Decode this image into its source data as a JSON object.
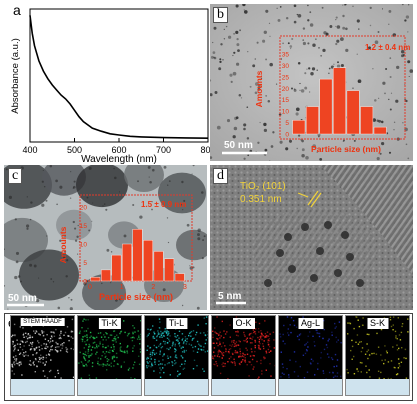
{
  "figure": {
    "panel_a": {
      "letter": "a",
      "chart_data": {
        "type": "line",
        "xlabel": "Wavelength (nm)",
        "ylabel": "Absorbance (a.u.)",
        "xlim": [
          400,
          800
        ],
        "xticks": [
          400,
          500,
          600,
          700,
          800
        ],
        "series": [
          {
            "x": [
              400,
              405,
              410,
              415,
              420,
              430,
              440,
              450,
              460,
              470,
              480,
              490,
              500,
              510,
              520,
              540,
              560,
              580,
              600,
              625,
              650,
              700,
              750,
              800
            ],
            "y": [
              1.0,
              0.86,
              0.76,
              0.7,
              0.64,
              0.56,
              0.5,
              0.45,
              0.41,
              0.37,
              0.34,
              0.3,
              0.25,
              0.2,
              0.16,
              0.11,
              0.085,
              0.065,
              0.055,
              0.045,
              0.04,
              0.035,
              0.032,
              0.03
            ]
          }
        ],
        "ylim": [
          0,
          1.05
        ]
      }
    },
    "panel_b": {
      "letter": "b",
      "scale_bar": "50 nm",
      "chart_data": {
        "type": "bar",
        "annotation": "1.2 ± 0.4 nm",
        "xlabel": "Particle size (nm)",
        "ylabel": "Amounts",
        "ylim": [
          0,
          35
        ],
        "yticks": [
          0,
          5,
          10,
          15,
          20,
          25,
          30,
          35
        ],
        "values": [
          6,
          12,
          24,
          29,
          19,
          12,
          3
        ]
      }
    },
    "panel_c": {
      "letter": "c",
      "scale_bar": "50 nm",
      "chart_data": {
        "type": "bar",
        "annotation": "1.5 ± 0.9 nm",
        "xlabel": "Particle size (nm)",
        "ylabel": "Amounts",
        "xlim": [
          0,
          3
        ],
        "xticks": [
          0,
          1,
          2,
          3
        ],
        "ylim": [
          0,
          20
        ],
        "yticks": [
          0,
          5,
          10,
          15,
          20
        ],
        "values": [
          1,
          3,
          7,
          10,
          14,
          11,
          8,
          6,
          2
        ]
      }
    },
    "panel_d": {
      "letter": "d",
      "lattice_label_1": "TiO₂ (101)",
      "lattice_label_2": "0.351 nm",
      "scale_bar": "5 nm"
    },
    "panel_e": {
      "letter": "e",
      "maps": [
        {
          "label": "STEM HAADF",
          "color": "#dddddd"
        },
        {
          "label": "Ti-K",
          "color": "#22cc55"
        },
        {
          "label": "Ti-L",
          "color": "#22cccc"
        },
        {
          "label": "O-K",
          "color": "#ee2222"
        },
        {
          "label": "Ag-L",
          "color": "#2233bb"
        },
        {
          "label": "S-K",
          "color": "#cccc22"
        }
      ]
    },
    "colors": {
      "histogram_bar": "#ee4422",
      "histogram_text": "#ee3311",
      "frame": "#e23a2a",
      "annotation_yellow": "#f2d33a"
    }
  }
}
